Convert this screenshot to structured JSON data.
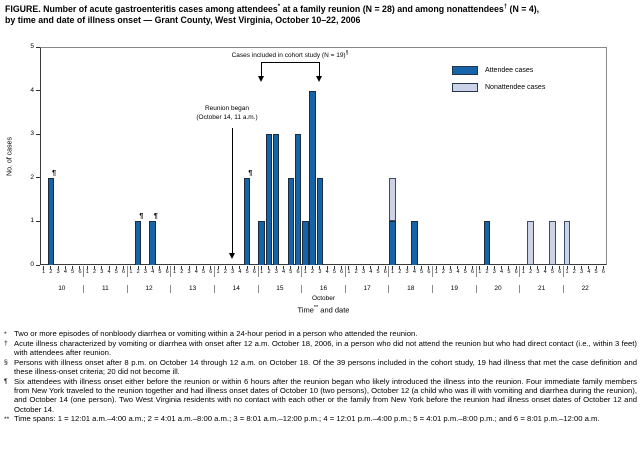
{
  "title": {
    "line1_pre": "FIGURE. Number of acute gastroenteritis cases among attendees",
    "line1_sup1": "*",
    "line1_mid": " at a family reunion (N = 28) and among nonattendees",
    "line1_sup2": "†",
    "line1_post": " (N = 4),",
    "line2": "by time and date of illness onset — Grant County, West Virginia, October 10–22, 2006"
  },
  "annotations": {
    "cohort": {
      "text": "Cases included in cohort study (N = 19)",
      "sup": "§"
    },
    "reunion": {
      "line1": "Reunion began",
      "line2": "(October 14, 11 a.m.)"
    }
  },
  "chart_data": {
    "type": "bar",
    "stacked": true,
    "ylabel": "No. of cases",
    "xlabel_pre": "Time",
    "xlabel_sup": "**",
    "xlabel_post": " and date",
    "ylim": [
      0,
      5
    ],
    "yticks": [
      0,
      1,
      2,
      3,
      4,
      5
    ],
    "grid": false,
    "legend_position": "top-right-inside",
    "x": {
      "month_label": "October",
      "days": [
        10,
        11,
        12,
        13,
        14,
        15,
        16,
        17,
        18,
        19,
        20,
        21,
        22
      ],
      "slots_per_day": 6,
      "slot_labels": [
        "1",
        "2",
        "3",
        "4",
        "5",
        "6"
      ]
    },
    "series": [
      {
        "name": "Attendee cases",
        "color": "#1563a8",
        "border": "#1c2b3d"
      },
      {
        "name": "Nonattendee cases",
        "color": "#ccd3e8",
        "border": "#3d4c66"
      }
    ],
    "bars": [
      {
        "day": 10,
        "slot": 2,
        "attendee": 2,
        "nonattendee": 0,
        "pilcrow": true
      },
      {
        "day": 12,
        "slot": 2,
        "attendee": 1,
        "nonattendee": 0,
        "pilcrow": true
      },
      {
        "day": 12,
        "slot": 4,
        "attendee": 1,
        "nonattendee": 0,
        "pilcrow": true
      },
      {
        "day": 14,
        "slot": 5,
        "attendee": 2,
        "nonattendee": 0,
        "pilcrow": true
      },
      {
        "day": 15,
        "slot": 1,
        "attendee": 1,
        "nonattendee": 0,
        "pilcrow": false
      },
      {
        "day": 15,
        "slot": 2,
        "attendee": 3,
        "nonattendee": 0,
        "pilcrow": false
      },
      {
        "day": 15,
        "slot": 3,
        "attendee": 3,
        "nonattendee": 0,
        "pilcrow": false
      },
      {
        "day": 15,
        "slot": 5,
        "attendee": 2,
        "nonattendee": 0,
        "pilcrow": false
      },
      {
        "day": 15,
        "slot": 6,
        "attendee": 3,
        "nonattendee": 0,
        "pilcrow": false
      },
      {
        "day": 16,
        "slot": 1,
        "attendee": 1,
        "nonattendee": 0,
        "pilcrow": false
      },
      {
        "day": 16,
        "slot": 2,
        "attendee": 4,
        "nonattendee": 0,
        "pilcrow": false
      },
      {
        "day": 16,
        "slot": 3,
        "attendee": 2,
        "nonattendee": 0,
        "pilcrow": false
      },
      {
        "day": 18,
        "slot": 1,
        "attendee": 1,
        "nonattendee": 1,
        "pilcrow": false
      },
      {
        "day": 18,
        "slot": 4,
        "attendee": 1,
        "nonattendee": 0,
        "pilcrow": false
      },
      {
        "day": 20,
        "slot": 2,
        "attendee": 1,
        "nonattendee": 0,
        "pilcrow": false
      },
      {
        "day": 21,
        "slot": 2,
        "attendee": 0,
        "nonattendee": 1,
        "pilcrow": false
      },
      {
        "day": 21,
        "slot": 5,
        "attendee": 0,
        "nonattendee": 1,
        "pilcrow": false
      },
      {
        "day": 22,
        "slot": 1,
        "attendee": 0,
        "nonattendee": 1,
        "pilcrow": false
      }
    ],
    "pilcrow_glyph": "¶"
  },
  "footnotes": [
    {
      "marker": "*",
      "text": "Two or more episodes of nonbloody diarrhea or vomiting within a 24-hour period in a person who attended the reunion."
    },
    {
      "marker": "†",
      "text": "Acute illness characterized by vomiting or diarrhea with onset after 12 a.m. October 18, 2006, in a person who did not attend the reunion but who had direct contact (i.e., within 3 feet) with attendees after reunion."
    },
    {
      "marker": "§",
      "text": "Persons with illness onset after 8 p.m. on October 14 through 12 a.m. on October 18. Of the 39 persons included in the cohort study, 19 had illness that met the case definition and these illness-onset criteria; 20 did not become ill."
    },
    {
      "marker": "¶",
      "text": "Six attendees with illness onset either before the reunion or within 6 hours after the reunion began who likely introduced the illness into the reunion. Four immediate family members from New York traveled to the reunion together and had illness onset dates of October 10 (two persons), October 12 (a child who was ill with vomiting and diarrhea during the reunion), and October 14 (one person). Two West Virginia residents with no contact with each other or the family from New York before the reunion had illness onset dates of October 12 and October 14."
    },
    {
      "marker": "**",
      "text": "Time spans: 1 = 12:01 a.m.–4:00 a.m.; 2 = 4:01 a.m.–8:00 a.m.; 3 = 8:01 a.m.–12:00 p.m.; 4 = 12:01 p.m.–4:00 p.m.; 5 = 4:01 p.m.–8:00 p.m.; and 6 = 8:01 p.m.–12:00 a.m."
    }
  ]
}
